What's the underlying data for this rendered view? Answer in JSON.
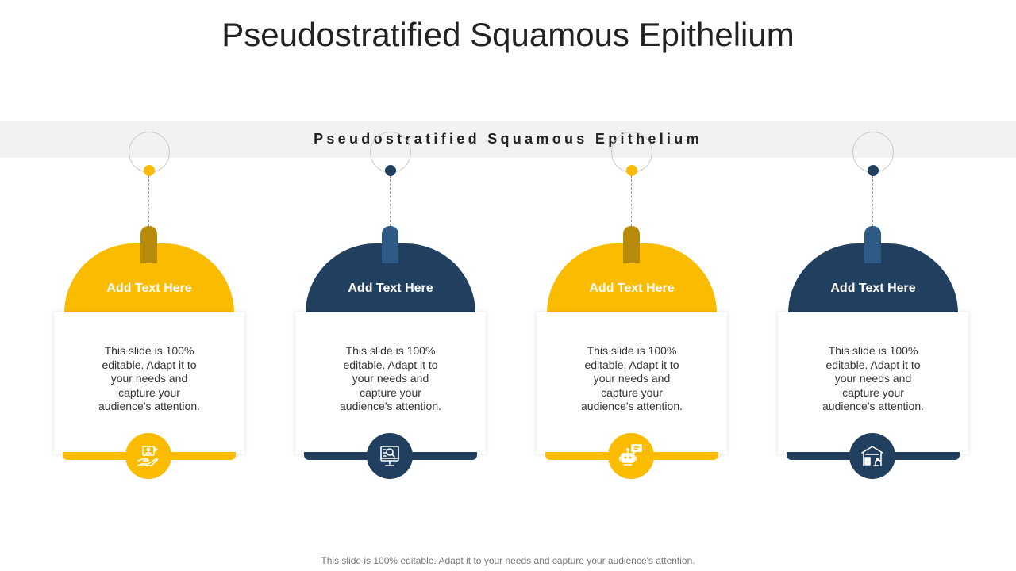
{
  "slide": {
    "title": "Pseudostratified Squamous Epithelium",
    "band_label": "Pseudostratified Squamous Epithelium",
    "footer": "This slide is 100% editable. Adapt it to your needs and capture your audience's attention."
  },
  "colors": {
    "yellow": "#fbbb00",
    "yellow_dark": "#b88a0a",
    "navy": "#21405f",
    "navy_light": "#2e5a86"
  },
  "cards": [
    {
      "heading": "Add  Text Here",
      "body": "This slide is 100% editable. Adapt it to your needs and capture your audience's attention.",
      "theme": "yellow",
      "icon": "hand-presentation-icon"
    },
    {
      "heading": "Add  Text Here",
      "body": "This slide is 100% editable. Adapt it to your needs and capture your audience's attention.",
      "theme": "navy",
      "icon": "monitor-search-icon"
    },
    {
      "heading": "Add  Text Here",
      "body": "This slide is 100% editable. Adapt it to your needs and capture your audience's attention.",
      "theme": "yellow",
      "icon": "robot-chat-icon"
    },
    {
      "heading": "Add  Text Here",
      "body": "This slide is 100% editable. Adapt it to your needs and capture your audience's attention.",
      "theme": "navy",
      "icon": "factory-robot-icon"
    }
  ]
}
